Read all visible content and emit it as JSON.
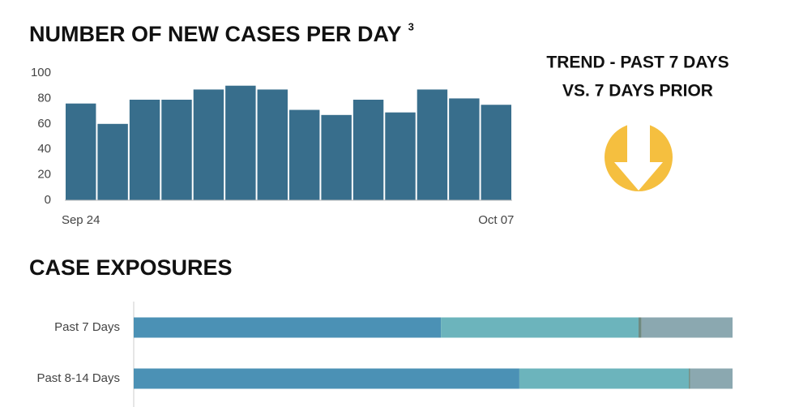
{
  "chart_data": [
    {
      "type": "bar",
      "title": "NUMBER OF NEW CASES PER DAY",
      "title_note": "3",
      "categories": [
        "Sep 24",
        null,
        null,
        null,
        null,
        null,
        null,
        null,
        null,
        null,
        null,
        null,
        null,
        "Oct 07"
      ],
      "values": [
        76,
        60,
        79,
        79,
        87,
        90,
        87,
        71,
        67,
        79,
        69,
        87,
        80,
        75
      ],
      "color": "#386e8c",
      "ylim": [
        0,
        100
      ],
      "yticks": [
        0,
        20,
        40,
        60,
        80,
        100
      ]
    },
    {
      "type": "stacked-hbar",
      "title": "CASE EXPOSURES",
      "categories": [
        "Past 7 Days",
        "Past 8-14 Days"
      ],
      "xlim": [
        0,
        100
      ],
      "series": [
        {
          "color": "#4b91b5",
          "values": [
            51.3,
            64.4
          ]
        },
        {
          "color": "#6cb4bc",
          "values": [
            33.0,
            28.3
          ]
        },
        {
          "color": "#6f8a80",
          "values": [
            0.5,
            0.2
          ]
        },
        {
          "color": "#8ba8b0",
          "values": [
            15.2,
            7.1
          ]
        }
      ]
    }
  ],
  "trend": {
    "lines": [
      "TREND - PAST 7 DAYS",
      "VS. 7 DAYS PRIOR"
    ]
  }
}
